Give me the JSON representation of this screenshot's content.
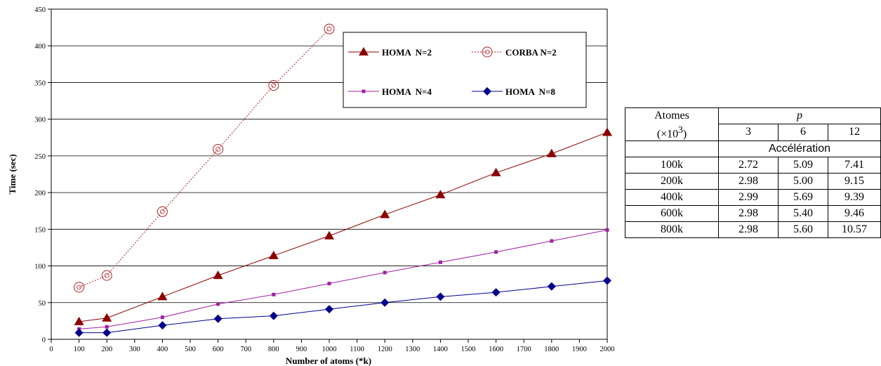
{
  "chart_data": {
    "type": "line",
    "xlabel": "Number of atoms (*k)",
    "ylabel": "Time (sec)",
    "xlim": [
      0,
      2000
    ],
    "ylim": [
      0,
      450
    ],
    "x_ticks": [
      0,
      100,
      200,
      300,
      400,
      500,
      600,
      700,
      800,
      900,
      1000,
      1100,
      1200,
      1300,
      1400,
      1500,
      1600,
      1700,
      1800,
      1900,
      2000
    ],
    "y_ticks": [
      0,
      50,
      100,
      150,
      200,
      250,
      300,
      350,
      400,
      450
    ],
    "grid": true,
    "legend_position": "top-center",
    "series": [
      {
        "name": "HOMA  N=2",
        "color": "#8b0000",
        "marker": "triangle",
        "line": "solid",
        "x": [
          100,
          200,
          400,
          600,
          800,
          1000,
          1200,
          1400,
          1600,
          1800,
          2000
        ],
        "y": [
          24,
          29,
          58,
          87,
          114,
          141,
          170,
          197,
          227,
          253,
          282
        ]
      },
      {
        "name": "CORBA N=2",
        "color": "#b22222",
        "marker": "circle-open",
        "line": "dotted",
        "x": [
          100,
          200,
          400,
          600,
          800,
          1000
        ],
        "y": [
          71,
          87,
          174,
          259,
          346,
          423
        ]
      },
      {
        "name": "HOMA  N=4",
        "color": "#a020a0",
        "marker": "square",
        "line": "solid",
        "x": [
          100,
          200,
          400,
          600,
          800,
          1000,
          1200,
          1400,
          1600,
          1800,
          2000
        ],
        "y": [
          14,
          17,
          30,
          48,
          61,
          76,
          91,
          105,
          119,
          134,
          149
        ]
      },
      {
        "name": "HOMA  N=8",
        "color": "#00008b",
        "marker": "diamond",
        "line": "solid",
        "x": [
          100,
          200,
          400,
          600,
          800,
          1000,
          1200,
          1400,
          1600,
          1800,
          2000
        ],
        "y": [
          9,
          9,
          19,
          28,
          32,
          41,
          50,
          58,
          64,
          72,
          80
        ]
      }
    ]
  },
  "table": {
    "header_col1_line1": "Atomes",
    "header_col1_line2": "(×10",
    "header_col1_sup": "3",
    "header_col1_close": ")",
    "header_group": "p",
    "p_values": [
      "3",
      "6",
      "12"
    ],
    "metric_label": "Accélération",
    "rows": [
      {
        "atoms": "100k",
        "values": [
          "2.72",
          "5.09",
          "7.41"
        ]
      },
      {
        "atoms": "200k",
        "values": [
          "2.98",
          "5.00",
          "9.15"
        ]
      },
      {
        "atoms": "400k",
        "values": [
          "2.99",
          "5.69",
          "9.39"
        ]
      },
      {
        "atoms": "600k",
        "values": [
          "2.98",
          "5.40",
          "9.46"
        ]
      },
      {
        "atoms": "800k",
        "values": [
          "2.98",
          "5.60",
          "10.57"
        ]
      }
    ]
  }
}
